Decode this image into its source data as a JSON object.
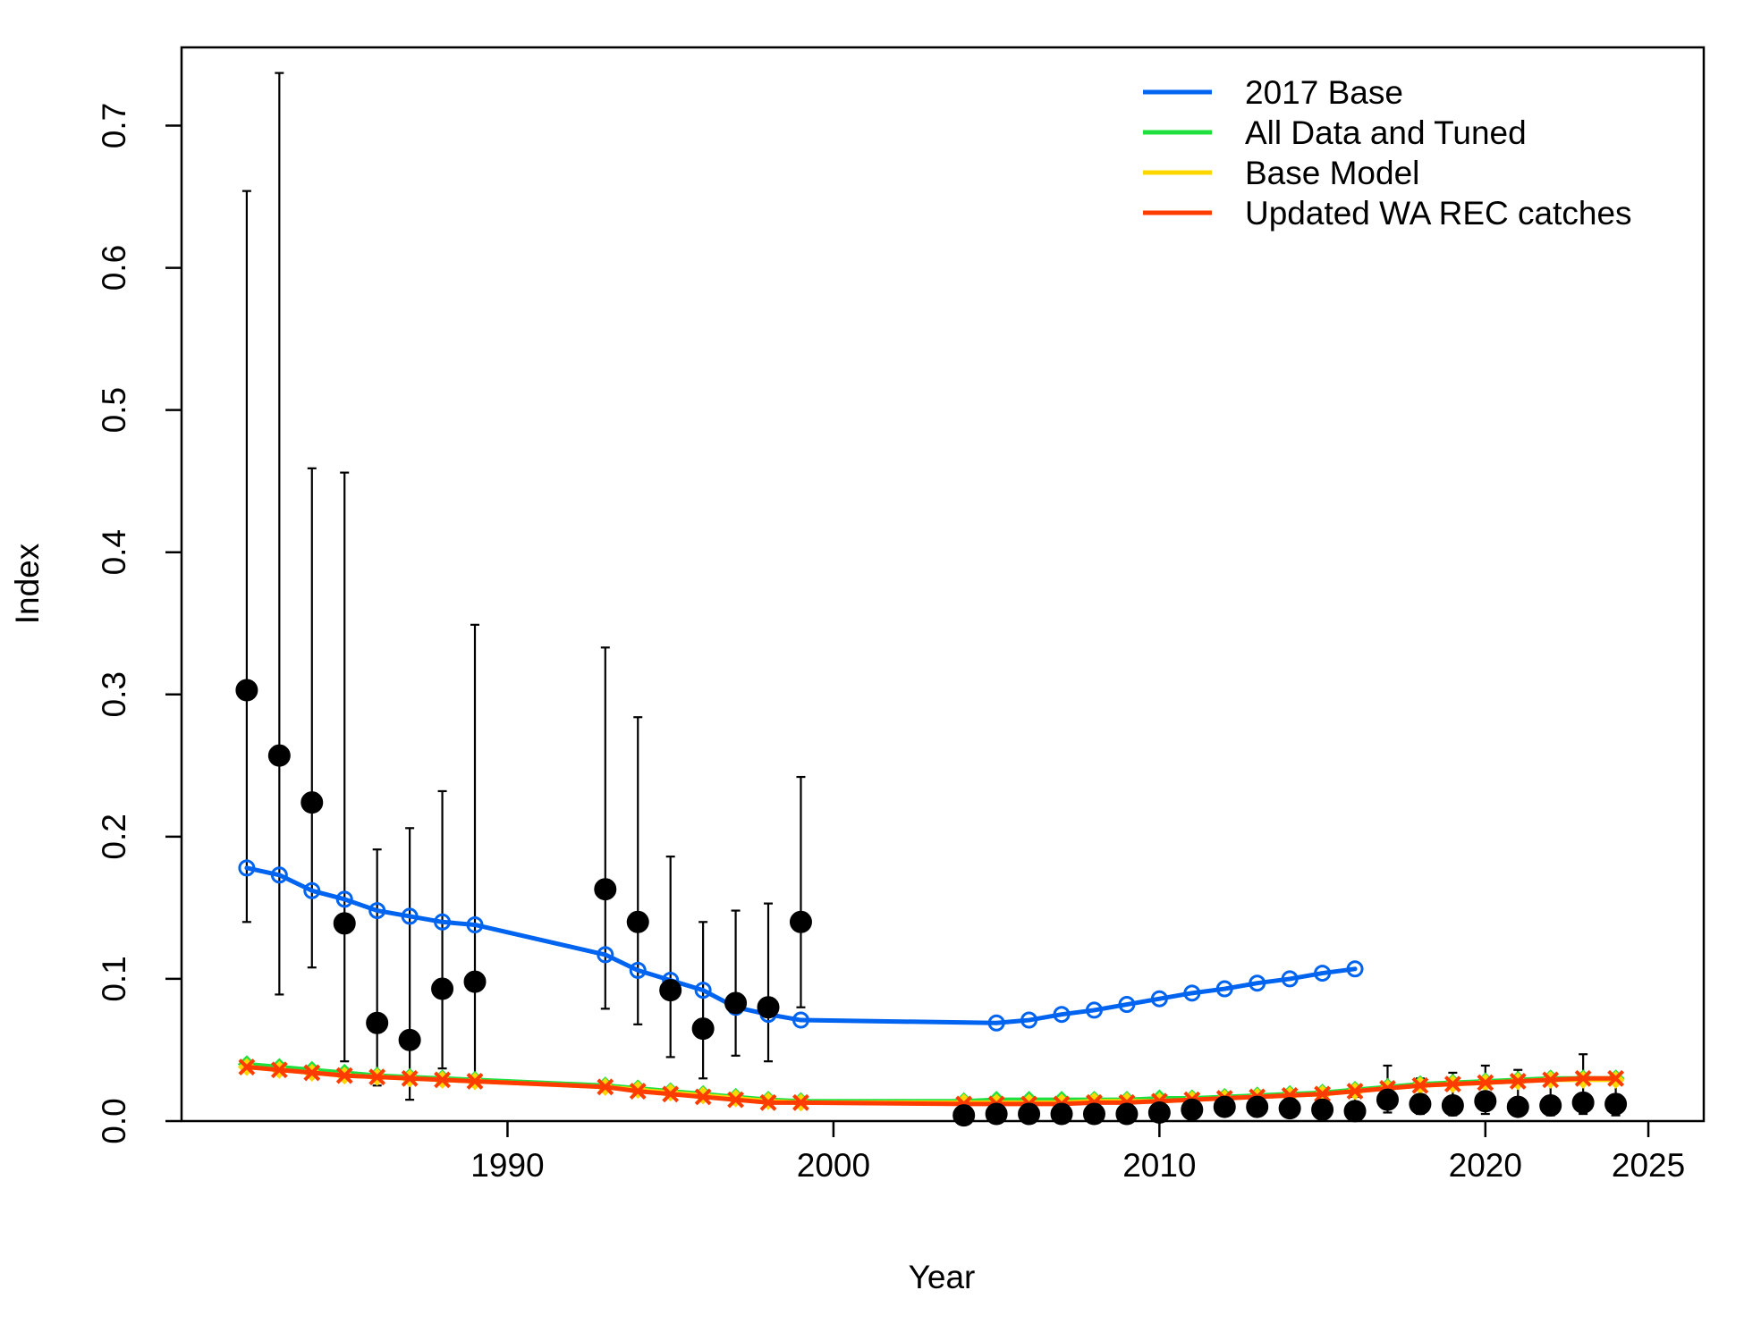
{
  "chart_data": {
    "type": "line",
    "title": "",
    "xlabel": "Year",
    "ylabel": "Index",
    "xlim": [
      1980.0,
      2026.7
    ],
    "ylim": [
      0,
      0.755
    ],
    "x_ticks": [
      1990,
      2000,
      2010,
      2020,
      2025
    ],
    "y_ticks": [
      0.0,
      0.1,
      0.2,
      0.3,
      0.4,
      0.5,
      0.6,
      0.7
    ],
    "x_tick_labels": [
      "1990",
      "2000",
      "2010",
      "2020",
      "2025"
    ],
    "y_tick_labels": [
      "0.0",
      "0.1",
      "0.2",
      "0.3",
      "0.4",
      "0.5",
      "0.6",
      "0.7"
    ],
    "grid": false,
    "legend_position": "top-right",
    "observed": {
      "years": [
        1982,
        1983,
        1984,
        1985,
        1986,
        1987,
        1988,
        1989,
        1993,
        1994,
        1995,
        1996,
        1997,
        1998,
        1999,
        2004,
        2005,
        2006,
        2007,
        2008,
        2009,
        2010,
        2011,
        2012,
        2013,
        2014,
        2015,
        2016,
        2017,
        2018,
        2019,
        2020,
        2021,
        2022,
        2023,
        2024
      ],
      "values": [
        0.303,
        0.257,
        0.224,
        0.139,
        0.069,
        0.057,
        0.093,
        0.098,
        0.163,
        0.14,
        0.092,
        0.065,
        0.083,
        0.08,
        0.14,
        0.004,
        0.005,
        0.005,
        0.005,
        0.005,
        0.005,
        0.006,
        0.008,
        0.01,
        0.01,
        0.009,
        0.008,
        0.007,
        0.015,
        0.012,
        0.011,
        0.014,
        0.01,
        0.011,
        0.013,
        0.012
      ],
      "lower": [
        0.14,
        0.089,
        0.108,
        0.042,
        0.025,
        0.015,
        0.037,
        0.03,
        0.079,
        0.068,
        0.045,
        0.03,
        0.046,
        0.042,
        0.08,
        0.002,
        0.002,
        0.002,
        0.002,
        0.002,
        0.002,
        0.002,
        0.003,
        0.004,
        0.004,
        0.004,
        0.003,
        0.003,
        0.006,
        0.005,
        0.004,
        0.005,
        0.004,
        0.004,
        0.005,
        0.004
      ],
      "upper": [
        0.654,
        0.737,
        0.459,
        0.456,
        0.191,
        0.206,
        0.232,
        0.349,
        0.333,
        0.284,
        0.186,
        0.14,
        0.148,
        0.153,
        0.242,
        0.009,
        0.01,
        0.011,
        0.011,
        0.011,
        0.011,
        0.013,
        0.018,
        0.02,
        0.02,
        0.019,
        0.018,
        0.017,
        0.039,
        0.03,
        0.034,
        0.039,
        0.036,
        0.031,
        0.047,
        0.03
      ]
    },
    "series": [
      {
        "name": "2017 Base",
        "color": "#0064f0",
        "marker": "circle-open",
        "segments": [
          {
            "x": [
              1982,
              1983,
              1984,
              1985,
              1986,
              1987,
              1988,
              1989,
              1993,
              1994,
              1995,
              1996,
              1997,
              1998,
              1999
            ],
            "y": [
              0.178,
              0.173,
              0.162,
              0.156,
              0.148,
              0.144,
              0.14,
              0.138,
              0.117,
              0.106,
              0.099,
              0.092,
              0.08,
              0.075,
              0.071
            ]
          },
          {
            "x": [
              1999,
              2005
            ],
            "y": [
              0.071,
              0.069
            ],
            "markers": false
          },
          {
            "x": [
              2005,
              2006,
              2007,
              2008,
              2009,
              2010,
              2011,
              2012,
              2013,
              2014,
              2015,
              2016
            ],
            "y": [
              0.069,
              0.071,
              0.075,
              0.078,
              0.082,
              0.086,
              0.09,
              0.093,
              0.097,
              0.1,
              0.104,
              0.107
            ]
          }
        ]
      },
      {
        "name": "All Data and Tuned",
        "color": "#20e040",
        "marker": "diamond",
        "years": [
          1982,
          1983,
          1984,
          1985,
          1986,
          1987,
          1988,
          1989,
          1993,
          1994,
          1995,
          1996,
          1997,
          1998,
          1999,
          2004,
          2005,
          2006,
          2007,
          2008,
          2009,
          2010,
          2011,
          2012,
          2013,
          2014,
          2015,
          2016,
          2017,
          2018,
          2019,
          2020,
          2021,
          2022,
          2023,
          2024
        ],
        "values": [
          0.04,
          0.038,
          0.036,
          0.034,
          0.032,
          0.031,
          0.03,
          0.029,
          0.025,
          0.023,
          0.021,
          0.019,
          0.017,
          0.015,
          0.014,
          0.014,
          0.015,
          0.015,
          0.015,
          0.015,
          0.015,
          0.016,
          0.016,
          0.017,
          0.018,
          0.019,
          0.02,
          0.022,
          0.024,
          0.026,
          0.027,
          0.028,
          0.029,
          0.03,
          0.03,
          0.03
        ]
      },
      {
        "name": "Base Model",
        "color": "#ffd700",
        "marker": "diamond",
        "years": [
          1982,
          1983,
          1984,
          1985,
          1986,
          1987,
          1988,
          1989,
          1993,
          1994,
          1995,
          1996,
          1997,
          1998,
          1999,
          2004,
          2005,
          2006,
          2007,
          2008,
          2009,
          2010,
          2011,
          2012,
          2013,
          2014,
          2015,
          2016,
          2017,
          2018,
          2019,
          2020,
          2021,
          2022,
          2023,
          2024
        ],
        "values": [
          0.038,
          0.036,
          0.034,
          0.032,
          0.031,
          0.03,
          0.029,
          0.028,
          0.024,
          0.022,
          0.02,
          0.018,
          0.016,
          0.014,
          0.013,
          0.013,
          0.013,
          0.013,
          0.013,
          0.014,
          0.014,
          0.014,
          0.015,
          0.016,
          0.017,
          0.018,
          0.019,
          0.021,
          0.023,
          0.025,
          0.026,
          0.027,
          0.028,
          0.029,
          0.029,
          0.029
        ]
      },
      {
        "name": "Updated WA REC catches",
        "color": "#ff3c00",
        "marker": "x",
        "years": [
          1982,
          1983,
          1984,
          1985,
          1986,
          1987,
          1988,
          1989,
          1993,
          1994,
          1995,
          1996,
          1997,
          1998,
          1999,
          2004,
          2005,
          2006,
          2007,
          2008,
          2009,
          2010,
          2011,
          2012,
          2013,
          2014,
          2015,
          2016,
          2017,
          2018,
          2019,
          2020,
          2021,
          2022,
          2023,
          2024
        ],
        "values": [
          0.038,
          0.036,
          0.034,
          0.032,
          0.031,
          0.03,
          0.029,
          0.028,
          0.024,
          0.021,
          0.019,
          0.017,
          0.015,
          0.013,
          0.013,
          0.012,
          0.012,
          0.012,
          0.012,
          0.013,
          0.013,
          0.014,
          0.015,
          0.016,
          0.017,
          0.018,
          0.019,
          0.021,
          0.023,
          0.025,
          0.026,
          0.027,
          0.028,
          0.029,
          0.03,
          0.03
        ]
      }
    ]
  }
}
